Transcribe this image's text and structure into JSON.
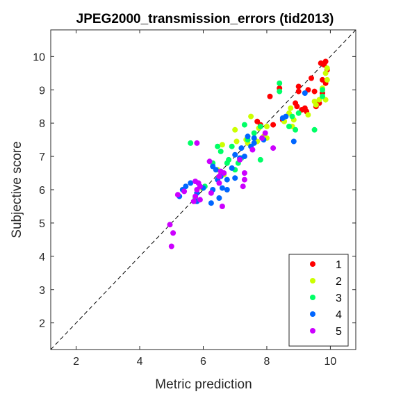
{
  "chart_data": {
    "type": "scatter",
    "title": "JPEG2000_transmission_errors (tid2013)",
    "xlabel": "Metric prediction",
    "ylabel": "Subjective score",
    "xlim": [
      1.2,
      10.8
    ],
    "ylim": [
      1.2,
      10.8
    ],
    "xticks": [
      2,
      4,
      6,
      8,
      10
    ],
    "yticks": [
      2,
      3,
      4,
      5,
      6,
      7,
      8,
      9,
      10
    ],
    "grid": false,
    "reference_line": "diagonal dashed y = x",
    "legend_position": "bottom-right",
    "series": [
      {
        "name": "1",
        "color": "#ff0000",
        "points": [
          [
            9.85,
            9.85
          ],
          [
            9.8,
            9.75
          ],
          [
            9.9,
            9.6
          ],
          [
            9.7,
            9.8
          ],
          [
            9.4,
            9.35
          ],
          [
            9.75,
            9.3
          ],
          [
            9.85,
            9.2
          ],
          [
            9.3,
            9.0
          ],
          [
            9.5,
            8.95
          ],
          [
            9.0,
            9.1
          ],
          [
            9.0,
            8.95
          ],
          [
            8.4,
            9.05
          ],
          [
            8.1,
            8.8
          ],
          [
            9.75,
            8.9
          ],
          [
            8.9,
            8.6
          ],
          [
            8.95,
            8.5
          ],
          [
            9.2,
            8.45
          ],
          [
            9.25,
            8.35
          ],
          [
            9.55,
            8.5
          ],
          [
            9.65,
            8.6
          ],
          [
            7.7,
            8.05
          ],
          [
            7.8,
            7.95
          ],
          [
            8.2,
            7.95
          ],
          [
            8.5,
            8.1
          ],
          [
            9.1,
            8.4
          ]
        ]
      },
      {
        "name": "2",
        "color": "#ccff00",
        "points": [
          [
            9.9,
            9.65
          ],
          [
            9.85,
            9.5
          ],
          [
            9.9,
            9.3
          ],
          [
            9.75,
            9.05
          ],
          [
            9.65,
            8.7
          ],
          [
            9.85,
            8.7
          ],
          [
            9.5,
            8.65
          ],
          [
            9.55,
            8.55
          ],
          [
            9.3,
            8.25
          ],
          [
            8.75,
            8.45
          ],
          [
            8.7,
            8.3
          ],
          [
            8.85,
            8.1
          ],
          [
            8.55,
            8.05
          ],
          [
            8.8,
            7.9
          ],
          [
            8.0,
            7.9
          ],
          [
            7.75,
            7.85
          ],
          [
            7.5,
            8.2
          ],
          [
            7.35,
            7.5
          ],
          [
            7.0,
            7.8
          ],
          [
            7.05,
            7.45
          ],
          [
            7.9,
            7.6
          ],
          [
            7.7,
            7.45
          ],
          [
            6.6,
            7.35
          ],
          [
            6.45,
            6.6
          ],
          [
            6.65,
            6.45
          ],
          [
            5.95,
            6.05
          ],
          [
            5.75,
            5.65
          ],
          [
            7.4,
            7.4
          ],
          [
            8.0,
            7.55
          ]
        ]
      },
      {
        "name": "3",
        "color": "#00ff66",
        "points": [
          [
            9.75,
            9.0
          ],
          [
            9.75,
            8.8
          ],
          [
            9.0,
            8.3
          ],
          [
            8.9,
            7.8
          ],
          [
            9.5,
            7.8
          ],
          [
            8.4,
            9.2
          ],
          [
            8.4,
            8.95
          ],
          [
            8.8,
            8.2
          ],
          [
            8.7,
            7.9
          ],
          [
            7.3,
            7.95
          ],
          [
            7.8,
            7.9
          ],
          [
            7.4,
            7.5
          ],
          [
            7.6,
            7.55
          ],
          [
            7.8,
            6.9
          ],
          [
            7.2,
            6.95
          ],
          [
            7.0,
            6.6
          ],
          [
            6.75,
            6.8
          ],
          [
            6.8,
            6.9
          ],
          [
            6.45,
            7.3
          ],
          [
            6.55,
            7.15
          ],
          [
            5.6,
            7.4
          ],
          [
            6.05,
            6.1
          ],
          [
            5.8,
            5.9
          ],
          [
            5.75,
            5.75
          ],
          [
            6.9,
            7.3
          ],
          [
            7.1,
            6.8
          ],
          [
            6.3,
            6.8
          ],
          [
            7.6,
            7.7
          ]
        ]
      },
      {
        "name": "4",
        "color": "#0066ff",
        "points": [
          [
            9.2,
            8.9
          ],
          [
            8.85,
            7.45
          ],
          [
            8.5,
            8.15
          ],
          [
            8.6,
            8.2
          ],
          [
            7.6,
            7.55
          ],
          [
            7.4,
            7.6
          ],
          [
            7.6,
            7.4
          ],
          [
            7.9,
            7.5
          ],
          [
            7.2,
            7.25
          ],
          [
            7.5,
            7.3
          ],
          [
            7.3,
            7.0
          ],
          [
            7.15,
            6.95
          ],
          [
            7.0,
            7.05
          ],
          [
            6.9,
            6.65
          ],
          [
            7.0,
            6.35
          ],
          [
            6.75,
            6.3
          ],
          [
            6.55,
            6.4
          ],
          [
            6.6,
            6.05
          ],
          [
            6.4,
            6.6
          ],
          [
            6.3,
            6.7
          ],
          [
            6.45,
            6.3
          ],
          [
            6.3,
            6.0
          ],
          [
            6.0,
            6.05
          ],
          [
            5.6,
            6.2
          ],
          [
            5.45,
            6.1
          ],
          [
            5.35,
            6.0
          ],
          [
            5.25,
            5.8
          ],
          [
            5.8,
            5.9
          ],
          [
            6.75,
            6.0
          ],
          [
            6.25,
            5.6
          ],
          [
            6.5,
            5.75
          ],
          [
            5.8,
            5.65
          ]
        ]
      },
      {
        "name": "5",
        "color": "#cc00ff",
        "points": [
          [
            8.2,
            7.25
          ],
          [
            7.95,
            7.7
          ],
          [
            7.85,
            7.55
          ],
          [
            7.55,
            7.2
          ],
          [
            7.15,
            6.9
          ],
          [
            7.3,
            6.5
          ],
          [
            7.3,
            6.3
          ],
          [
            7.25,
            6.1
          ],
          [
            6.65,
            6.5
          ],
          [
            6.55,
            6.55
          ],
          [
            6.5,
            6.4
          ],
          [
            6.5,
            6.2
          ],
          [
            6.6,
            5.5
          ],
          [
            6.2,
            6.85
          ],
          [
            6.25,
            5.9
          ],
          [
            5.85,
            6.2
          ],
          [
            5.9,
            6.1
          ],
          [
            5.75,
            6.25
          ],
          [
            5.8,
            6.0
          ],
          [
            5.75,
            5.8
          ],
          [
            5.7,
            5.65
          ],
          [
            5.4,
            5.95
          ],
          [
            5.2,
            5.85
          ],
          [
            5.8,
            7.4
          ],
          [
            5.05,
            4.7
          ],
          [
            4.95,
            4.95
          ],
          [
            5.0,
            4.3
          ],
          [
            5.9,
            5.7
          ]
        ]
      }
    ]
  }
}
